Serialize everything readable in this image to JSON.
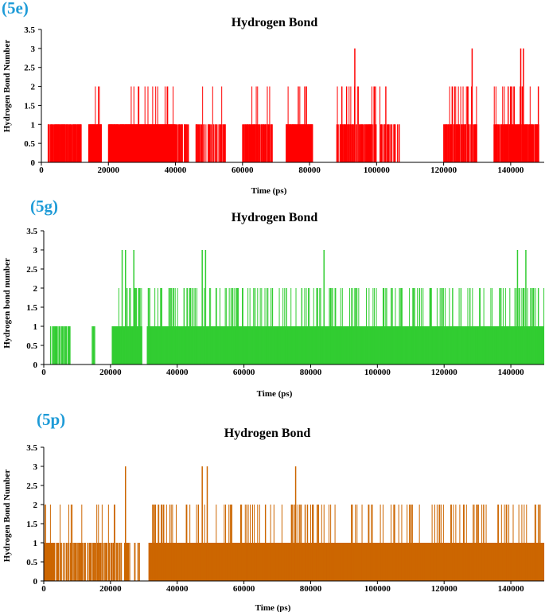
{
  "chart_data": [
    {
      "panel_label": "(5e)",
      "type": "line",
      "title": "Hydrogen Bond",
      "xlabel": "Time (ps)",
      "ylabel": "Hydrogen Bond Number",
      "xlim": [
        0,
        150000
      ],
      "ylim": [
        0,
        3.5
      ],
      "xticks": [
        0,
        20000,
        40000,
        60000,
        80000,
        100000,
        120000,
        140000
      ],
      "yticks": [
        0,
        0.5,
        1,
        1.5,
        2,
        2.5,
        3,
        3.5
      ],
      "color": "#ff0000",
      "x_range": [
        0,
        150000
      ],
      "zero_gaps": [
        [
          12000,
          14000
        ],
        [
          18000,
          20000
        ],
        [
          44000,
          46000
        ],
        [
          55000,
          60000
        ],
        [
          69000,
          73000
        ],
        [
          81000,
          88000
        ],
        [
          100000,
          101000
        ],
        [
          107000,
          111000
        ],
        [
          111000,
          120000
        ],
        [
          130000,
          135000
        ],
        [
          148500,
          150000
        ]
      ],
      "segments": [
        {
          "x": [
            0,
            2000
          ],
          "base": 0,
          "max": 2,
          "density": 0.2
        },
        {
          "x": [
            2000,
            12000
          ],
          "base": 1,
          "max": 1,
          "density": 0.8
        },
        {
          "x": [
            14000,
            18000
          ],
          "base": 1,
          "max": 2,
          "density": 0.9
        },
        {
          "x": [
            20000,
            25000
          ],
          "base": 1,
          "max": 1,
          "density": 0.9
        },
        {
          "x": [
            25000,
            40000
          ],
          "base": 1,
          "max": 2,
          "density": 1.0
        },
        {
          "x": [
            40000,
            44000
          ],
          "base": 1,
          "max": 1,
          "density": 0.8
        },
        {
          "x": [
            46000,
            55000
          ],
          "base": 1,
          "max": 2,
          "density": 0.6
        },
        {
          "x": [
            60000,
            69000
          ],
          "base": 1,
          "max": 2,
          "density": 0.7
        },
        {
          "x": [
            73000,
            81000
          ],
          "base": 1,
          "max": 2,
          "density": 0.9
        },
        {
          "x": [
            88000,
            100000
          ],
          "base": 1,
          "max": 3,
          "density": 0.7
        },
        {
          "x": [
            101000,
            107000
          ],
          "base": 1,
          "max": 2,
          "density": 0.5
        },
        {
          "x": [
            120000,
            130000
          ],
          "base": 1,
          "max": 3,
          "density": 0.8
        },
        {
          "x": [
            135000,
            148500
          ],
          "base": 1,
          "max": 3,
          "density": 0.85
        }
      ],
      "peaks": [
        {
          "x": 93500,
          "y": 3
        },
        {
          "x": 128500,
          "y": 3
        },
        {
          "x": 143000,
          "y": 3
        },
        {
          "x": 143800,
          "y": 3
        }
      ]
    },
    {
      "panel_label": "(5g)",
      "type": "line",
      "title": "Hydrogen Bond",
      "xlabel": "Time (ps)",
      "ylabel": "Hydrogen bond number",
      "xlim": [
        0,
        150000
      ],
      "ylim": [
        0,
        3.5
      ],
      "xticks": [
        0,
        20000,
        40000,
        60000,
        80000,
        100000,
        120000,
        140000
      ],
      "yticks": [
        0,
        0.5,
        1,
        1.5,
        2,
        2.5,
        3,
        3.5
      ],
      "color": "#32cd32",
      "x_range": [
        0,
        150000
      ],
      "zero_gaps": [
        [
          0,
          2000
        ],
        [
          8000,
          14500
        ],
        [
          15500,
          20500
        ],
        [
          29500,
          31000
        ]
      ],
      "segments": [
        {
          "x": [
            2000,
            8000
          ],
          "base": 1,
          "max": 1,
          "density": 0.5
        },
        {
          "x": [
            14500,
            15500
          ],
          "base": 1,
          "max": 1,
          "density": 0.5
        },
        {
          "x": [
            20500,
            29500
          ],
          "base": 1,
          "max": 3,
          "density": 1.0
        },
        {
          "x": [
            31000,
            150000
          ],
          "base": 1,
          "max": 2,
          "density": 1.0
        }
      ],
      "peaks": [
        {
          "x": 23500,
          "y": 3
        },
        {
          "x": 24500,
          "y": 3
        },
        {
          "x": 27000,
          "y": 3
        },
        {
          "x": 47500,
          "y": 3
        },
        {
          "x": 48500,
          "y": 3
        },
        {
          "x": 84000,
          "y": 3
        },
        {
          "x": 142000,
          "y": 3
        },
        {
          "x": 144500,
          "y": 3
        }
      ]
    },
    {
      "panel_label": "(5p)",
      "type": "line",
      "title": "Hydrogen Bond",
      "xlabel": "Time (ps)",
      "ylabel": "Hydrogen Bond Number",
      "xlim": [
        0,
        150000
      ],
      "ylim": [
        0,
        3.5
      ],
      "xticks": [
        0,
        20000,
        40000,
        60000,
        80000,
        100000,
        120000,
        140000
      ],
      "yticks": [
        0,
        0.5,
        1,
        1.5,
        2,
        2.5,
        3,
        3.5
      ],
      "color": "#cc6600",
      "x_range": [
        0,
        150000
      ],
      "zero_gaps": [
        [
          26000,
          27000
        ],
        [
          29000,
          31500
        ]
      ],
      "segments": [
        {
          "x": [
            0,
            3000
          ],
          "base": 1,
          "max": 2,
          "density": 0.9
        },
        {
          "x": [
            3000,
            26000
          ],
          "base": 1,
          "max": 2,
          "density": 0.55
        },
        {
          "x": [
            27000,
            29000
          ],
          "base": 1,
          "max": 1,
          "density": 0.5
        },
        {
          "x": [
            31500,
            150000
          ],
          "base": 1,
          "max": 2,
          "density": 0.97
        }
      ],
      "peaks": [
        {
          "x": 24500,
          "y": 3
        },
        {
          "x": 47500,
          "y": 3
        },
        {
          "x": 49000,
          "y": 3
        },
        {
          "x": 75500,
          "y": 3
        }
      ]
    }
  ]
}
